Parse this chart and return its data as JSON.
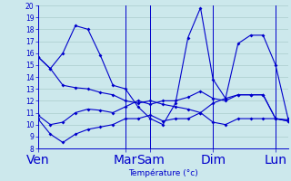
{
  "xlabel": "Température (°c)",
  "bg_color": "#cce8ec",
  "grid_color": "#aacccc",
  "line_color": "#0000cc",
  "ylim": [
    8,
    20
  ],
  "yticks": [
    8,
    9,
    10,
    11,
    12,
    13,
    14,
    15,
    16,
    17,
    18,
    19,
    20
  ],
  "xlim": [
    0,
    20
  ],
  "xtick_labels": [
    [
      "Ven",
      0
    ],
    [
      "Mar",
      7
    ],
    [
      "Sam",
      9
    ],
    [
      "Dim",
      14
    ],
    [
      "Lun",
      19
    ]
  ],
  "line1_x": [
    0,
    1,
    2,
    3,
    4,
    5,
    6,
    7,
    8,
    9,
    10,
    11,
    12,
    13,
    14,
    15,
    16,
    17,
    18,
    19,
    20
  ],
  "line1_y": [
    15.7,
    14.7,
    13.3,
    13.1,
    13.0,
    12.7,
    12.5,
    12.0,
    11.8,
    12.0,
    11.7,
    11.5,
    11.3,
    11.0,
    11.8,
    12.2,
    12.5,
    12.5,
    12.5,
    10.5,
    10.4
  ],
  "line2_x": [
    0,
    1,
    2,
    3,
    4,
    5,
    6,
    7,
    8,
    9,
    10,
    11,
    12,
    13,
    14,
    15,
    16,
    17,
    18,
    19,
    20
  ],
  "line2_y": [
    10.8,
    10.0,
    10.2,
    11.0,
    11.3,
    11.2,
    11.0,
    11.5,
    12.0,
    11.7,
    12.0,
    12.0,
    12.3,
    12.8,
    12.2,
    12.0,
    12.5,
    12.5,
    12.5,
    10.5,
    10.3
  ],
  "line3_x": [
    0,
    1,
    2,
    3,
    4,
    5,
    6,
    7,
    8,
    9,
    10,
    11,
    12,
    13,
    14,
    15,
    16,
    17,
    18,
    19,
    20
  ],
  "line3_y": [
    10.5,
    9.2,
    8.5,
    9.2,
    9.6,
    9.8,
    10.0,
    10.5,
    10.5,
    10.8,
    10.3,
    10.5,
    10.5,
    11.0,
    10.2,
    10.0,
    10.5,
    10.5,
    10.5,
    10.5,
    10.3
  ],
  "line4_x": [
    0,
    1,
    2,
    3,
    4,
    5,
    6,
    7,
    8,
    9,
    10,
    11,
    12,
    13,
    14,
    15,
    16,
    17,
    18,
    19,
    20
  ],
  "line4_y": [
    15.7,
    14.7,
    16.0,
    18.3,
    18.0,
    15.8,
    13.3,
    13.0,
    11.5,
    10.5,
    10.0,
    11.8,
    17.3,
    19.8,
    13.8,
    12.2,
    16.8,
    17.5,
    17.5,
    15.0,
    10.5
  ],
  "vline_x": [
    0,
    7,
    9,
    14,
    19
  ]
}
